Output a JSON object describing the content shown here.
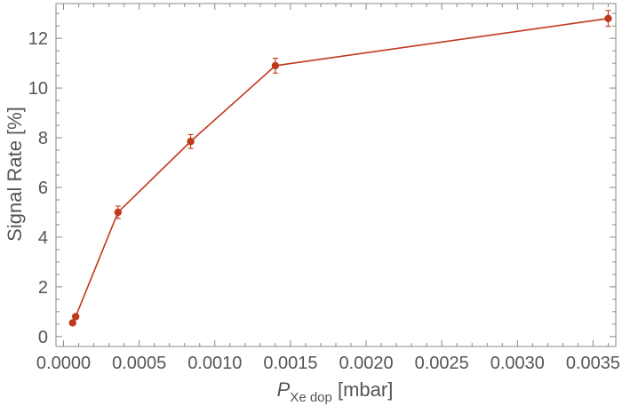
{
  "chart_data": {
    "type": "scatter",
    "xlabel": {
      "prefix": "P",
      "subscript": "Xe dop",
      "suffix": " [mbar]"
    },
    "ylabel": "Signal Rate [%]",
    "xlim": [
      -5e-05,
      0.00365
    ],
    "ylim": [
      -0.4,
      13.4
    ],
    "xticks": [
      "0.0000",
      "0.0005",
      "0.0010",
      "0.0015",
      "0.0020",
      "0.0025",
      "0.0030",
      "0.0035"
    ],
    "xtick_values": [
      0,
      0.0005,
      0.001,
      0.0015,
      0.002,
      0.0025,
      0.003,
      0.0035
    ],
    "yticks": [
      "0",
      "2",
      "4",
      "6",
      "8",
      "10",
      "12"
    ],
    "ytick_values": [
      0,
      2,
      4,
      6,
      8,
      10,
      12
    ],
    "grid": false,
    "color": "#c0391b",
    "series": [
      {
        "line_x": [
          8e-05,
          0.00036,
          0.00084,
          0.0014,
          0.0036
        ],
        "line_y": [
          0.8,
          5.0,
          7.85,
          10.9,
          12.8
        ],
        "points_x": [
          6e-05,
          8e-05,
          0.00036,
          0.00084,
          0.0014,
          0.0036
        ],
        "points_y": [
          0.55,
          0.8,
          5.0,
          7.85,
          10.9,
          12.8
        ],
        "err": [
          0.05,
          0.1,
          0.25,
          0.28,
          0.3,
          0.32
        ]
      }
    ]
  }
}
